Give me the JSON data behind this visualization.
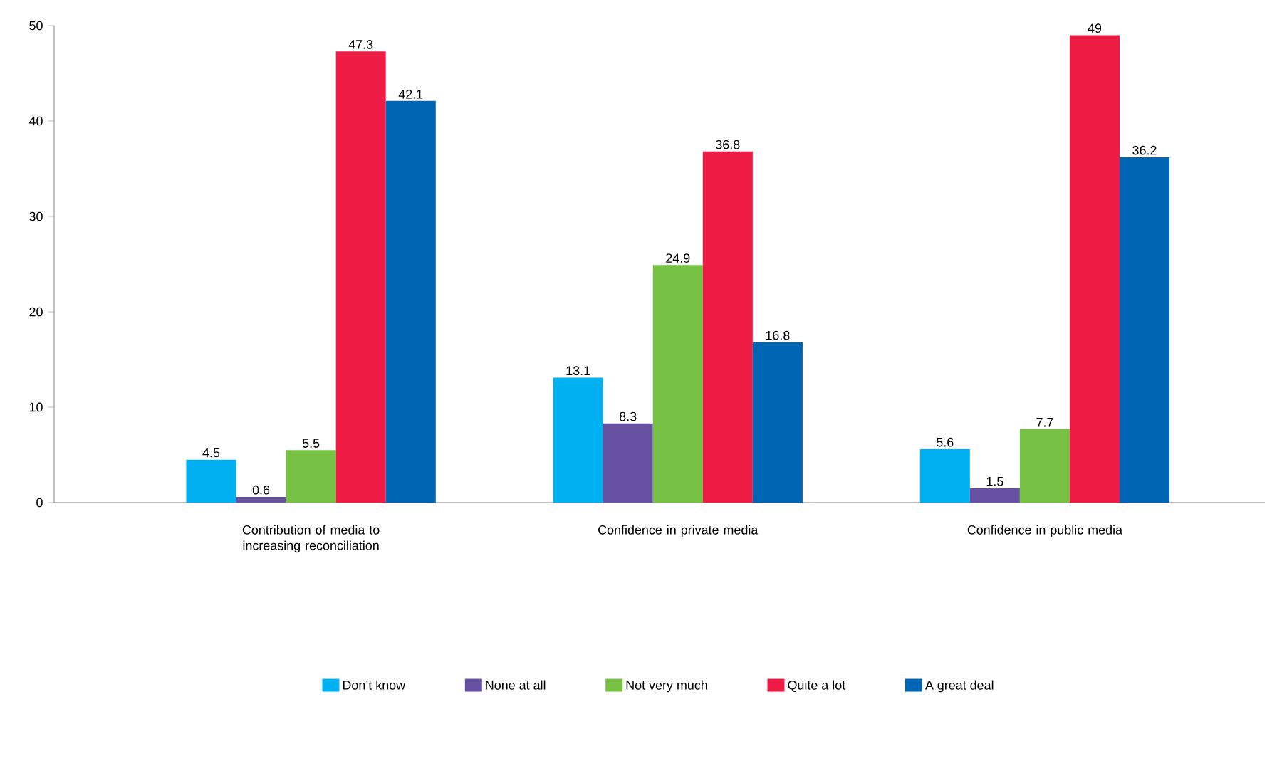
{
  "chart_data": {
    "type": "bar",
    "categories": [
      "Contribution of media to increasing reconciliation",
      "Confidence in private media",
      "Confidence in public media"
    ],
    "series": [
      {
        "name": "Don’t know",
        "color": "#00b0f0",
        "values": [
          4.5,
          13.1,
          5.6
        ]
      },
      {
        "name": "None at all",
        "color": "#6650a2",
        "values": [
          0.6,
          8.3,
          1.5
        ]
      },
      {
        "name": "Not very much",
        "color": "#76c043",
        "values": [
          5.5,
          24.9,
          7.7
        ]
      },
      {
        "name": "Quite a lot",
        "color": "#ee1c45",
        "values": [
          47.3,
          36.8,
          49
        ]
      },
      {
        "name": "A great deal",
        "color": "#0066b3",
        "values": [
          42.1,
          16.8,
          36.2
        ]
      }
    ],
    "ylim": [
      0,
      50
    ],
    "yticks": [
      0,
      10,
      20,
      30,
      40,
      50
    ],
    "grid": false,
    "legend": "bottom",
    "data_labels": true
  }
}
